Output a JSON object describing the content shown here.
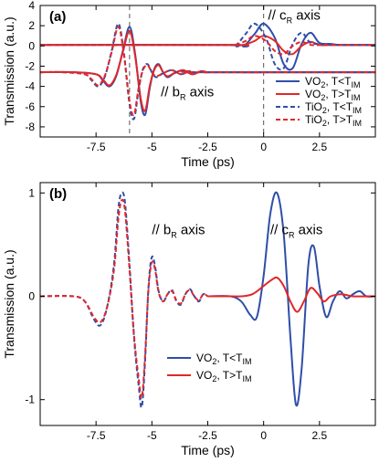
{
  "colors": {
    "vo2_cold": "#2f4ea8",
    "vo2_hot": "#e0282a",
    "tio2_cold": "#2f4ea8",
    "tio2_hot": "#e0282a",
    "axis": "#000000",
    "guide": "#555555"
  },
  "chart_data": [
    {
      "panel": "(a)",
      "type": "line",
      "xlabel": "Time (ps)",
      "ylabel": "Transmission (a.u.)",
      "xlim": [
        -10,
        5
      ],
      "ylim": [
        -9,
        4
      ],
      "xticks": [
        -7.5,
        -5,
        -2.5,
        0,
        2.5
      ],
      "xtick_labels": [
        "-7.5",
        "-5",
        "-2.5",
        "0",
        "2.5"
      ],
      "yticks": [
        -8,
        -6,
        -4,
        -2,
        0,
        2,
        4
      ],
      "ytick_labels": [
        "-8",
        "-6",
        "-4",
        "-2",
        "0",
        "2",
        "4"
      ],
      "guides_x": [
        -6,
        0
      ],
      "annotations": [
        {
          "text_main": "// b",
          "text_sub": "R",
          "text_tail": " axis",
          "x": -4.6,
          "y": -5.0
        },
        {
          "text_main": "// c",
          "text_sub": "R",
          "text_tail": " axis",
          "x": 0.2,
          "y": 2.6
        }
      ],
      "legend": [
        {
          "main": "VO",
          "sub": "2",
          "tail": ", T<T",
          "sub2": "IM",
          "style": "solid",
          "color": "#2f4ea8"
        },
        {
          "main": "VO",
          "sub": "2",
          "tail": ", T>T",
          "sub2": "IM",
          "style": "solid",
          "color": "#e0282a"
        },
        {
          "main": "TiO",
          "sub": "2",
          "tail": ", T<T",
          "sub2": "IM",
          "style": "dashed",
          "color": "#2f4ea8"
        },
        {
          "main": "TiO",
          "sub": "2",
          "tail": ", T>T",
          "sub2": "IM",
          "style": "dashed",
          "color": "#e0282a"
        }
      ],
      "legend_position": "lower-right",
      "series": [
        {
          "key": "vo2_cold_b",
          "style": "solid",
          "color": "#2f4ea8",
          "x": [
            -10,
            -8.5,
            -7.5,
            -7.2,
            -6.9,
            -6.6,
            -6.3,
            -6.0,
            -5.75,
            -5.5,
            -5.3,
            -5.1,
            -4.9,
            -4.7,
            -4.5,
            -4.3,
            -4.0,
            -3.6,
            -3.2,
            -2.8,
            -2.5,
            -2,
            5
          ],
          "y": [
            -2.6,
            -2.6,
            -2.8,
            -3.4,
            -4.0,
            -3.0,
            -0.5,
            1.9,
            -0.8,
            -5.5,
            -6.8,
            -4.2,
            -2.3,
            -1.8,
            -2.6,
            -3.1,
            -2.7,
            -2.4,
            -2.8,
            -2.5,
            -2.6,
            -2.6,
            -2.6
          ]
        },
        {
          "key": "vo2_hot_b",
          "style": "solid",
          "color": "#e0282a",
          "x": [
            -10,
            -8.5,
            -7.5,
            -7.2,
            -6.9,
            -6.6,
            -6.3,
            -6.0,
            -5.75,
            -5.5,
            -5.3,
            -5.1,
            -4.9,
            -4.7,
            -4.5,
            -4.3,
            -4.0,
            -3.6,
            -3.2,
            -2.8,
            -2.5,
            -2,
            5
          ],
          "y": [
            -2.6,
            -2.6,
            -2.8,
            -3.3,
            -3.9,
            -2.9,
            -0.6,
            1.5,
            -1.0,
            -5.2,
            -6.4,
            -4.0,
            -2.4,
            -1.9,
            -2.6,
            -3.0,
            -2.7,
            -2.4,
            -2.8,
            -2.5,
            -2.6,
            -2.6,
            -2.6
          ]
        },
        {
          "key": "tio2_cold_b",
          "style": "dashed",
          "color": "#2f4ea8",
          "x": [
            -10,
            -9,
            -8,
            -7.7,
            -7.4,
            -7.1,
            -6.8,
            -6.5,
            -6.25,
            -6.0,
            -5.8,
            -5.6,
            -5.4,
            -5.2,
            -5.0,
            -4.8,
            -4.5,
            -4.1,
            -3.7,
            -3.3,
            -3,
            5
          ],
          "y": [
            -2.6,
            -2.6,
            -2.8,
            -3.4,
            -4.0,
            -3.0,
            -0.5,
            2.2,
            -0.8,
            -5.8,
            -7.2,
            -4.4,
            -2.3,
            -1.8,
            -2.6,
            -3.1,
            -2.7,
            -2.4,
            -2.8,
            -2.5,
            -2.6,
            -2.6
          ]
        },
        {
          "key": "tio2_hot_b",
          "style": "dashed",
          "color": "#e0282a",
          "x": [
            -10,
            -9,
            -8,
            -7.7,
            -7.4,
            -7.1,
            -6.8,
            -6.5,
            -6.25,
            -6.0,
            -5.8,
            -5.6,
            -5.4,
            -5.2,
            -5.0,
            -4.8,
            -4.5,
            -4.1,
            -3.7,
            -3.3,
            -3,
            5
          ],
          "y": [
            -2.6,
            -2.6,
            -2.8,
            -3.3,
            -3.9,
            -2.9,
            -0.6,
            1.9,
            -0.9,
            -5.5,
            -6.8,
            -4.2,
            -2.4,
            -1.9,
            -2.6,
            -3.0,
            -2.7,
            -2.4,
            -2.8,
            -2.5,
            -2.6,
            -2.6
          ]
        },
        {
          "key": "vo2_cold_c",
          "style": "solid",
          "color": "#2f4ea8",
          "x": [
            -10,
            -1.5,
            -0.9,
            -0.4,
            0.0,
            0.5,
            0.9,
            1.3,
            1.7,
            2.1,
            2.5,
            3.0,
            3.5,
            5
          ],
          "y": [
            0.1,
            0.1,
            0.0,
            1.2,
            2.2,
            0.8,
            -1.8,
            -2.2,
            0.2,
            1.3,
            0.3,
            0.2,
            0.1,
            0.1
          ]
        },
        {
          "key": "vo2_hot_c",
          "style": "solid",
          "color": "#e0282a",
          "x": [
            -10,
            -1.5,
            -0.9,
            -0.4,
            0.0,
            0.5,
            0.9,
            1.3,
            1.7,
            2.1,
            2.5,
            3.0,
            3.5,
            5
          ],
          "y": [
            0.1,
            0.1,
            0.1,
            0.5,
            1.0,
            0.5,
            -0.5,
            -0.8,
            0.0,
            0.4,
            0.1,
            0.1,
            0.1,
            0.1
          ]
        },
        {
          "key": "tio2_cold_c",
          "style": "dashed",
          "color": "#2f4ea8",
          "x": [
            -10,
            -1.9,
            -1.3,
            -0.8,
            -0.4,
            0.1,
            0.5,
            0.9,
            1.3,
            1.7,
            2.1,
            2.6,
            3.1,
            5
          ],
          "y": [
            0.1,
            0.1,
            0.0,
            1.2,
            2.2,
            0.8,
            -1.8,
            -2.2,
            0.2,
            1.3,
            0.3,
            0.2,
            0.1,
            0.1
          ]
        },
        {
          "key": "tio2_hot_c",
          "style": "dashed",
          "color": "#e0282a",
          "x": [
            -10,
            -1.9,
            -1.3,
            -0.8,
            -0.4,
            0.1,
            0.5,
            0.9,
            1.3,
            1.7,
            2.1,
            2.6,
            3.1,
            5
          ],
          "y": [
            0.1,
            0.1,
            0.1,
            0.5,
            1.0,
            0.5,
            -0.5,
            -0.8,
            0.0,
            0.4,
            0.1,
            0.1,
            0.1,
            0.1
          ]
        }
      ]
    },
    {
      "panel": "(b)",
      "type": "line",
      "xlabel": "Time (ps)",
      "ylabel": "Transmission (a.u.)",
      "xlim": [
        -10,
        5
      ],
      "ylim": [
        -1.25,
        1.1
      ],
      "xticks": [
        -7.5,
        -5,
        -2.5,
        0,
        2.5
      ],
      "xtick_labels": [
        "-7.5",
        "-5",
        "-2.5",
        "0",
        "2.5"
      ],
      "yticks": [
        -1,
        0,
        1
      ],
      "ytick_labels": [
        "-1",
        "0",
        "1"
      ],
      "guides_x": [],
      "annotations": [
        {
          "text_main": "// b",
          "text_sub": "R",
          "text_tail": " axis",
          "x": -5.0,
          "y": 0.6
        },
        {
          "text_main": "// c",
          "text_sub": "R",
          "text_tail": " axis",
          "x": 0.3,
          "y": 0.6
        }
      ],
      "legend": [
        {
          "main": "VO",
          "sub": "2",
          "tail": ", T<T",
          "sub2": "IM",
          "style": "solid",
          "color": "#2f4ea8"
        },
        {
          "main": "VO",
          "sub": "2",
          "tail": ", T>T",
          "sub2": "IM",
          "style": "solid",
          "color": "#e0282a"
        }
      ],
      "legend_position": "lower-center",
      "series": [
        {
          "key": "vo2_cold_b_panel",
          "style": "dashed",
          "color": "#2f4ea8",
          "x": [
            -10,
            -8.5,
            -8.0,
            -7.6,
            -7.3,
            -7.0,
            -6.7,
            -6.5,
            -6.35,
            -6.2,
            -6.0,
            -5.8,
            -5.6,
            -5.45,
            -5.3,
            -5.15,
            -5.0,
            -4.85,
            -4.7,
            -4.5,
            -4.3,
            -4.1,
            -3.9,
            -3.7,
            -3.5,
            -3.3,
            -3.1,
            -2.9,
            -2.7,
            -2.5
          ],
          "y": [
            0,
            0,
            -0.05,
            -0.22,
            -0.28,
            -0.1,
            0.3,
            0.85,
            1.0,
            0.9,
            0.3,
            -0.4,
            -0.85,
            -1.07,
            -0.6,
            0.1,
            0.38,
            0.28,
            0.05,
            -0.05,
            0.02,
            0.06,
            -0.05,
            -0.08,
            0.02,
            0.07,
            0.0,
            -0.05,
            0.02,
            0.0
          ]
        },
        {
          "key": "vo2_hot_b_panel",
          "style": "dashed",
          "color": "#e0282a",
          "x": [
            -10,
            -8.5,
            -8.0,
            -7.6,
            -7.3,
            -7.0,
            -6.7,
            -6.5,
            -6.35,
            -6.2,
            -6.0,
            -5.8,
            -5.6,
            -5.45,
            -5.3,
            -5.15,
            -5.0,
            -4.85,
            -4.7,
            -4.5,
            -4.3,
            -4.1,
            -3.9,
            -3.7,
            -3.5,
            -3.3,
            -3.1,
            -2.9,
            -2.7,
            -2.5
          ],
          "y": [
            0,
            0,
            -0.05,
            -0.2,
            -0.25,
            -0.1,
            0.25,
            0.75,
            0.93,
            0.82,
            0.25,
            -0.38,
            -0.78,
            -0.98,
            -0.55,
            0.08,
            0.33,
            0.25,
            0.04,
            -0.05,
            0.02,
            0.05,
            -0.04,
            -0.07,
            0.02,
            0.06,
            0.0,
            -0.04,
            0.02,
            0.0
          ]
        },
        {
          "key": "vo2_cold_c_panel",
          "style": "solid",
          "color": "#2f4ea8",
          "x": [
            -2.5,
            -1.5,
            -1.0,
            -0.6,
            -0.3,
            0.0,
            0.3,
            0.6,
            0.9,
            1.2,
            1.45,
            1.7,
            2.0,
            2.25,
            2.5,
            2.8,
            3.1,
            3.4,
            3.7,
            4.0,
            4.3,
            4.6,
            5.0
          ],
          "y": [
            0,
            0,
            -0.05,
            -0.18,
            -0.2,
            0.2,
            0.8,
            1.0,
            0.6,
            -0.4,
            -1.05,
            -0.7,
            0.3,
            0.48,
            0.1,
            -0.2,
            -0.05,
            0.05,
            -0.02,
            0.02,
            0.05,
            0.0,
            0.0
          ]
        },
        {
          "key": "vo2_hot_c_panel",
          "style": "solid",
          "color": "#e0282a",
          "x": [
            -2.5,
            -1.5,
            -1.0,
            -0.5,
            0.0,
            0.3,
            0.6,
            0.9,
            1.2,
            1.5,
            1.8,
            2.1,
            2.4,
            2.7,
            3.0,
            3.5,
            4.0,
            5.0
          ],
          "y": [
            0,
            0,
            0,
            0.02,
            0.1,
            0.15,
            0.18,
            0.1,
            -0.05,
            -0.15,
            -0.05,
            0.08,
            0.03,
            -0.05,
            0.0,
            0.02,
            0.0,
            0.0
          ]
        }
      ]
    }
  ]
}
